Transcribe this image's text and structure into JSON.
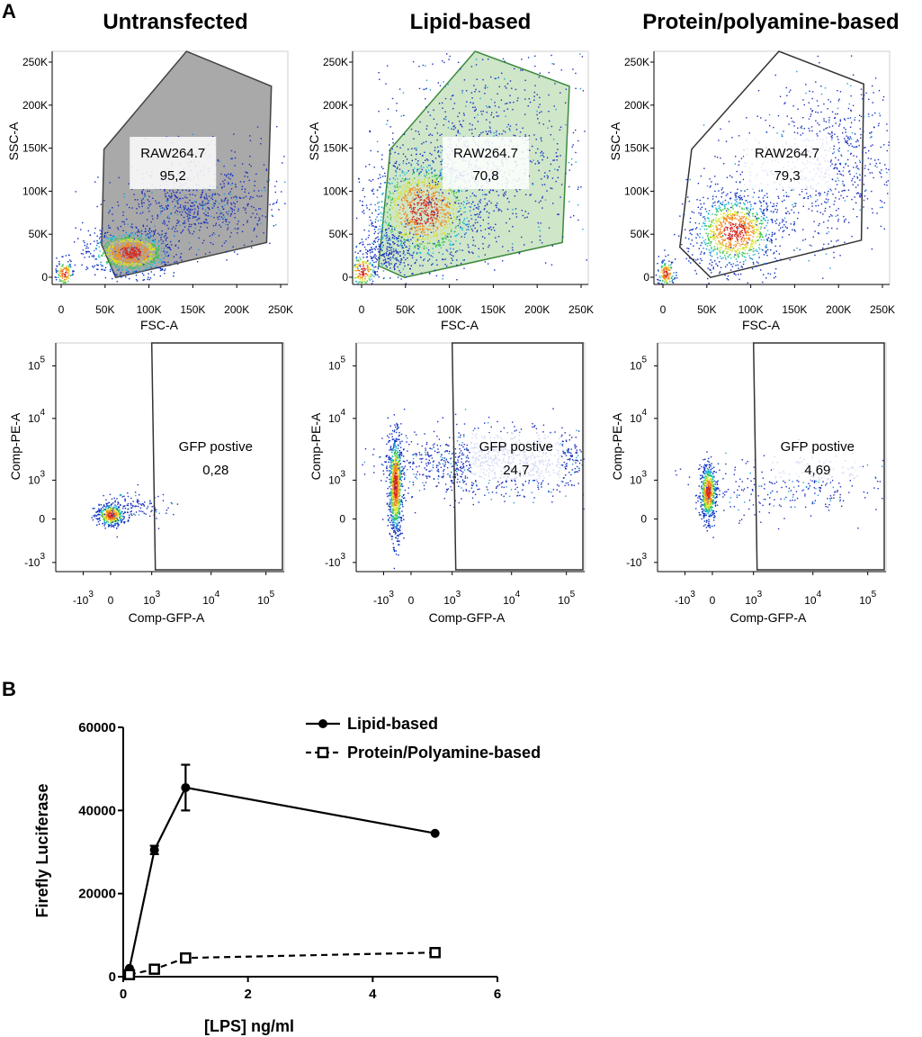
{
  "figure": {
    "panel_a_letter": "A",
    "panel_b_letter": "B",
    "columns": [
      {
        "title": "Untransfected",
        "scatter": {
          "x_label": "FSC-A",
          "y_label": "SSC-A",
          "gate_name": "RAW264.7",
          "gate_value": "95,2",
          "gate_fill": "#a9a9a9",
          "gate_stroke": "#444444"
        },
        "gfp": {
          "x_label": "Comp-GFP-A",
          "y_label": "Comp-PE-A",
          "gate_name": "GFP postive",
          "gate_value": "0,28"
        }
      },
      {
        "title": "Lipid-based",
        "scatter": {
          "x_label": "FSC-A",
          "y_label": "SSC-A",
          "gate_name": "RAW264.7",
          "gate_value": "70,8",
          "gate_fill": "#cfe6c9",
          "gate_stroke": "#3d8a3d"
        },
        "gfp": {
          "x_label": "Comp-GFP-A",
          "y_label": "Comp-PE-A",
          "gate_name": "GFP postive",
          "gate_value": "24,7"
        }
      },
      {
        "title": "Protein/polyamine-based",
        "scatter": {
          "x_label": "FSC-A",
          "y_label": "SSC-A",
          "gate_name": "RAW264.7",
          "gate_value": "79,3",
          "gate_fill": "none",
          "gate_stroke": "#333333"
        },
        "gfp": {
          "x_label": "Comp-GFP-A",
          "y_label": "Comp-PE-A",
          "gate_name": "GFP postive",
          "gate_value": "4,69"
        }
      }
    ],
    "scatter_ticks": {
      "x": [
        "0",
        "50K",
        "100K",
        "150K",
        "200K",
        "250K"
      ],
      "y": [
        "0",
        "50K",
        "100K",
        "150K",
        "200K",
        "250K"
      ]
    },
    "gfp_ticks": {
      "x": [
        {
          "base": "-10",
          "exp": "3"
        },
        {
          "base": "0",
          "exp": ""
        },
        {
          "base": "10",
          "exp": "3"
        },
        {
          "base": "10",
          "exp": "4"
        },
        {
          "base": "10",
          "exp": "5"
        }
      ],
      "y": [
        {
          "base": "10",
          "exp": "5"
        },
        {
          "base": "10",
          "exp": "4"
        },
        {
          "base": "10",
          "exp": "3"
        },
        {
          "base": "0",
          "exp": ""
        },
        {
          "base": "-10",
          "exp": "3"
        }
      ]
    }
  },
  "chart_data": {
    "type": "line",
    "title": "",
    "xlabel": "[LPS] ng/ml",
    "ylabel": "Firefly  Luciferase",
    "xlim": [
      0,
      6
    ],
    "ylim": [
      0,
      60000
    ],
    "x_ticks": [
      "0",
      "2",
      "4",
      "6"
    ],
    "y_ticks": [
      "0",
      "20000",
      "40000",
      "60000"
    ],
    "legend_position": "top-right",
    "series": [
      {
        "name": "Lipid-based",
        "marker": "filled-circle",
        "line": "solid",
        "x": [
          0.1,
          0.5,
          1,
          5
        ],
        "values": [
          2000,
          30500,
          45500,
          34500
        ],
        "error": [
          0,
          1000,
          5500,
          0
        ]
      },
      {
        "name": "Protein/Polyamine-based",
        "marker": "open-square",
        "line": "dashed",
        "x": [
          0.1,
          0.5,
          1,
          5
        ],
        "values": [
          500,
          1800,
          4500,
          5800
        ],
        "error": [
          0,
          0,
          0,
          0
        ]
      }
    ]
  }
}
